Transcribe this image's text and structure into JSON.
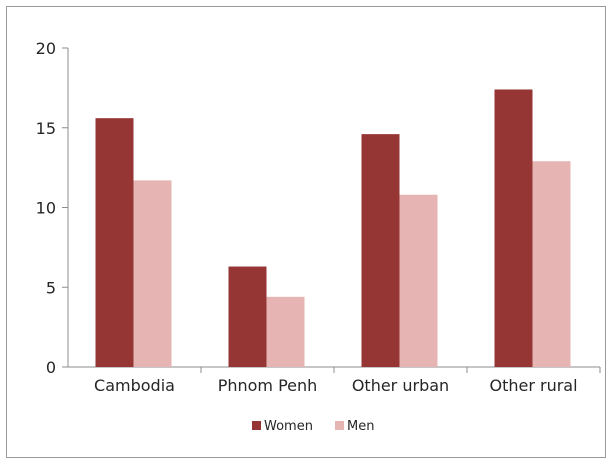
{
  "chart_data": {
    "type": "bar",
    "categories": [
      "Cambodia",
      "Phnom Penh",
      "Other urban",
      "Other rural"
    ],
    "series": [
      {
        "name": "Women",
        "values": [
          15.6,
          6.3,
          14.6,
          17.4
        ],
        "color": "#963634"
      },
      {
        "name": "Men",
        "values": [
          11.7,
          4.4,
          10.8,
          12.9
        ],
        "color": "#e6b5b3"
      }
    ],
    "title": "",
    "xlabel": "",
    "ylabel": "",
    "ylim": [
      0,
      20
    ],
    "yticks": [
      0,
      5,
      10,
      15,
      20
    ],
    "grid": false,
    "legend": "bottom"
  }
}
